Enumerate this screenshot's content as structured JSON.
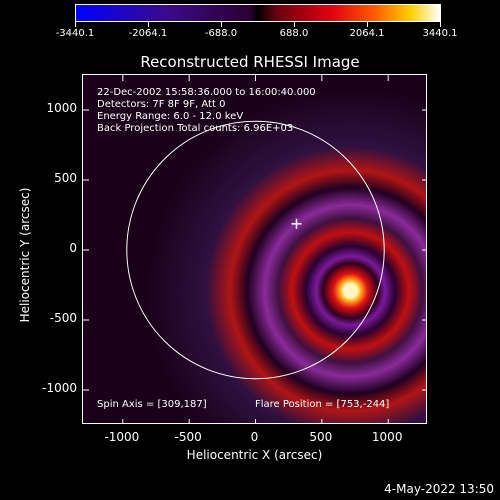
{
  "colorbar": {
    "ticks": [
      "-3440.1",
      "-2064.1",
      "-688.0",
      "688.0",
      "2064.1",
      "3440.1"
    ]
  },
  "plot": {
    "title": "Reconstructed RHESSI Image",
    "annotations": {
      "line1": "22-Dec-2002 15:58:36.000 to 16:00:40.000",
      "line2": "Detectors: 7F 8F 9F, Att 0",
      "line3": "Energy Range: 6.0 - 12.0 keV",
      "line4": "Back Projection    Total counts: 6.96E+03",
      "spin_axis": "Spin Axis = [309,187]",
      "flare_position": "Flare Position = [753,-244]"
    }
  },
  "chart_data": {
    "type": "heatmap",
    "title": "Reconstructed RHESSI Image",
    "xlabel": "Heliocentric X (arcsec)",
    "ylabel": "Heliocentric Y (arcsec)",
    "xlim": [
      -1300,
      1300
    ],
    "ylim": [
      -1250,
      1250
    ],
    "x_ticks": [
      "-1000",
      "-500",
      "0",
      "500",
      "1000"
    ],
    "y_ticks": [
      "1000",
      "500",
      "0",
      "-500",
      "-1000"
    ],
    "x_tick_values": [
      -1000,
      -500,
      0,
      500,
      1000
    ],
    "y_tick_values": [
      1000,
      500,
      0,
      -500,
      -1000
    ],
    "colorbar_range": [
      -3440.1,
      3440.1
    ],
    "solar_limb": {
      "center": [
        0,
        0
      ],
      "radius": 970
    },
    "spin_axis_marker": [
      309,
      187
    ],
    "flare_peak": [
      753,
      -244
    ]
  },
  "footer": {
    "timestamp": "4-May-2022 13:50"
  }
}
